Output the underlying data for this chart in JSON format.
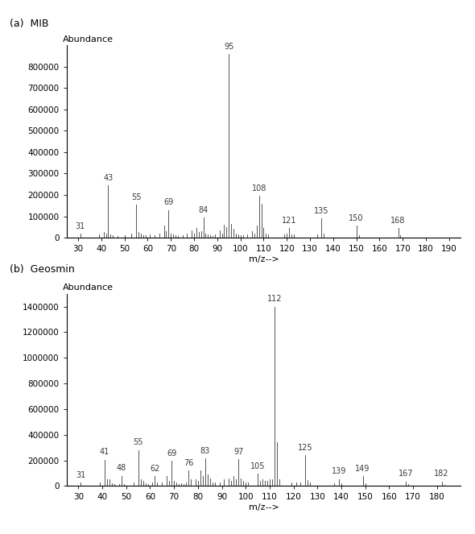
{
  "panel_a": {
    "title": "(a)  MIB",
    "ylabel": "Abundance",
    "xlabel": "m/z-->",
    "xlim": [
      25,
      195
    ],
    "ylim": [
      0,
      900000
    ],
    "yticks": [
      0,
      100000,
      200000,
      300000,
      400000,
      500000,
      600000,
      700000,
      800000
    ],
    "xticks": [
      30,
      40,
      50,
      60,
      70,
      80,
      90,
      100,
      110,
      120,
      130,
      140,
      150,
      160,
      170,
      180,
      190
    ],
    "labeled_peaks": {
      "31": 18000,
      "43": 245000,
      "55": 155000,
      "69": 130000,
      "84": 95000,
      "95": 860000,
      "108": 195000,
      "121": 45000,
      "135": 90000,
      "150": 55000,
      "168": 45000
    },
    "all_peaks": [
      [
        31,
        18000
      ],
      [
        39,
        15000
      ],
      [
        41,
        25000
      ],
      [
        42,
        18000
      ],
      [
        43,
        245000
      ],
      [
        44,
        15000
      ],
      [
        45,
        10000
      ],
      [
        47,
        8000
      ],
      [
        50,
        10000
      ],
      [
        53,
        20000
      ],
      [
        55,
        155000
      ],
      [
        56,
        25000
      ],
      [
        57,
        20000
      ],
      [
        58,
        12000
      ],
      [
        59,
        10000
      ],
      [
        61,
        15000
      ],
      [
        63,
        12000
      ],
      [
        65,
        20000
      ],
      [
        67,
        55000
      ],
      [
        68,
        30000
      ],
      [
        69,
        130000
      ],
      [
        70,
        20000
      ],
      [
        71,
        15000
      ],
      [
        72,
        10000
      ],
      [
        73,
        8000
      ],
      [
        75,
        10000
      ],
      [
        77,
        20000
      ],
      [
        79,
        35000
      ],
      [
        80,
        20000
      ],
      [
        81,
        45000
      ],
      [
        82,
        25000
      ],
      [
        83,
        30000
      ],
      [
        84,
        95000
      ],
      [
        85,
        20000
      ],
      [
        86,
        15000
      ],
      [
        87,
        10000
      ],
      [
        88,
        8000
      ],
      [
        89,
        15000
      ],
      [
        91,
        35000
      ],
      [
        92,
        20000
      ],
      [
        93,
        60000
      ],
      [
        94,
        50000
      ],
      [
        95,
        860000
      ],
      [
        96,
        65000
      ],
      [
        97,
        40000
      ],
      [
        98,
        20000
      ],
      [
        99,
        15000
      ],
      [
        100,
        10000
      ],
      [
        101,
        10000
      ],
      [
        103,
        15000
      ],
      [
        105,
        30000
      ],
      [
        106,
        20000
      ],
      [
        107,
        55000
      ],
      [
        108,
        195000
      ],
      [
        109,
        160000
      ],
      [
        110,
        45000
      ],
      [
        111,
        20000
      ],
      [
        112,
        15000
      ],
      [
        119,
        15000
      ],
      [
        120,
        20000
      ],
      [
        121,
        45000
      ],
      [
        122,
        15000
      ],
      [
        123,
        15000
      ],
      [
        133,
        15000
      ],
      [
        135,
        90000
      ],
      [
        136,
        20000
      ],
      [
        150,
        55000
      ],
      [
        151,
        12000
      ],
      [
        168,
        45000
      ],
      [
        169,
        12000
      ]
    ]
  },
  "panel_b": {
    "title": "(b)  Geosmin",
    "ylabel": "Abundance",
    "xlabel": "m/z-->",
    "xlim": [
      25,
      190
    ],
    "ylim": [
      0,
      1500000
    ],
    "yticks": [
      0,
      200000,
      400000,
      600000,
      800000,
      1000000,
      1200000,
      1400000
    ],
    "xticks": [
      30,
      40,
      50,
      60,
      70,
      80,
      90,
      100,
      110,
      120,
      130,
      140,
      150,
      160,
      170,
      180
    ],
    "labeled_peaks": {
      "31": 25000,
      "41": 205000,
      "48": 80000,
      "55": 280000,
      "62": 75000,
      "69": 195000,
      "76": 120000,
      "83": 215000,
      "97": 210000,
      "105": 95000,
      "112": 1400000,
      "125": 240000,
      "139": 55000,
      "149": 75000,
      "167": 35000,
      "182": 35000
    },
    "all_peaks": [
      [
        31,
        25000
      ],
      [
        39,
        25000
      ],
      [
        41,
        205000
      ],
      [
        42,
        50000
      ],
      [
        43,
        50000
      ],
      [
        44,
        20000
      ],
      [
        45,
        15000
      ],
      [
        47,
        15000
      ],
      [
        48,
        80000
      ],
      [
        49,
        15000
      ],
      [
        53,
        25000
      ],
      [
        55,
        280000
      ],
      [
        56,
        50000
      ],
      [
        57,
        40000
      ],
      [
        58,
        20000
      ],
      [
        59,
        15000
      ],
      [
        61,
        30000
      ],
      [
        62,
        75000
      ],
      [
        63,
        30000
      ],
      [
        65,
        30000
      ],
      [
        67,
        80000
      ],
      [
        68,
        40000
      ],
      [
        69,
        195000
      ],
      [
        70,
        40000
      ],
      [
        71,
        30000
      ],
      [
        72,
        15000
      ],
      [
        73,
        20000
      ],
      [
        74,
        15000
      ],
      [
        75,
        30000
      ],
      [
        76,
        120000
      ],
      [
        77,
        55000
      ],
      [
        79,
        50000
      ],
      [
        80,
        40000
      ],
      [
        81,
        120000
      ],
      [
        82,
        80000
      ],
      [
        83,
        215000
      ],
      [
        84,
        90000
      ],
      [
        85,
        60000
      ],
      [
        86,
        30000
      ],
      [
        87,
        25000
      ],
      [
        89,
        30000
      ],
      [
        91,
        55000
      ],
      [
        93,
        60000
      ],
      [
        94,
        40000
      ],
      [
        95,
        80000
      ],
      [
        96,
        50000
      ],
      [
        97,
        210000
      ],
      [
        98,
        60000
      ],
      [
        99,
        40000
      ],
      [
        100,
        25000
      ],
      [
        101,
        25000
      ],
      [
        105,
        95000
      ],
      [
        106,
        40000
      ],
      [
        107,
        50000
      ],
      [
        108,
        40000
      ],
      [
        109,
        40000
      ],
      [
        110,
        50000
      ],
      [
        111,
        50000
      ],
      [
        112,
        1400000
      ],
      [
        113,
        340000
      ],
      [
        114,
        50000
      ],
      [
        119,
        25000
      ],
      [
        121,
        25000
      ],
      [
        123,
        30000
      ],
      [
        125,
        240000
      ],
      [
        126,
        45000
      ],
      [
        127,
        25000
      ],
      [
        137,
        20000
      ],
      [
        139,
        55000
      ],
      [
        140,
        20000
      ],
      [
        149,
        75000
      ],
      [
        150,
        20000
      ],
      [
        167,
        35000
      ],
      [
        168,
        15000
      ],
      [
        182,
        35000
      ],
      [
        183,
        10000
      ]
    ]
  },
  "bg_color": "#ffffff",
  "line_color": "#3a3a3a",
  "label_color": "#3a3a3a",
  "fontsize_title": 9,
  "fontsize_label": 8,
  "fontsize_tick": 7.5,
  "fontsize_peak": 7
}
